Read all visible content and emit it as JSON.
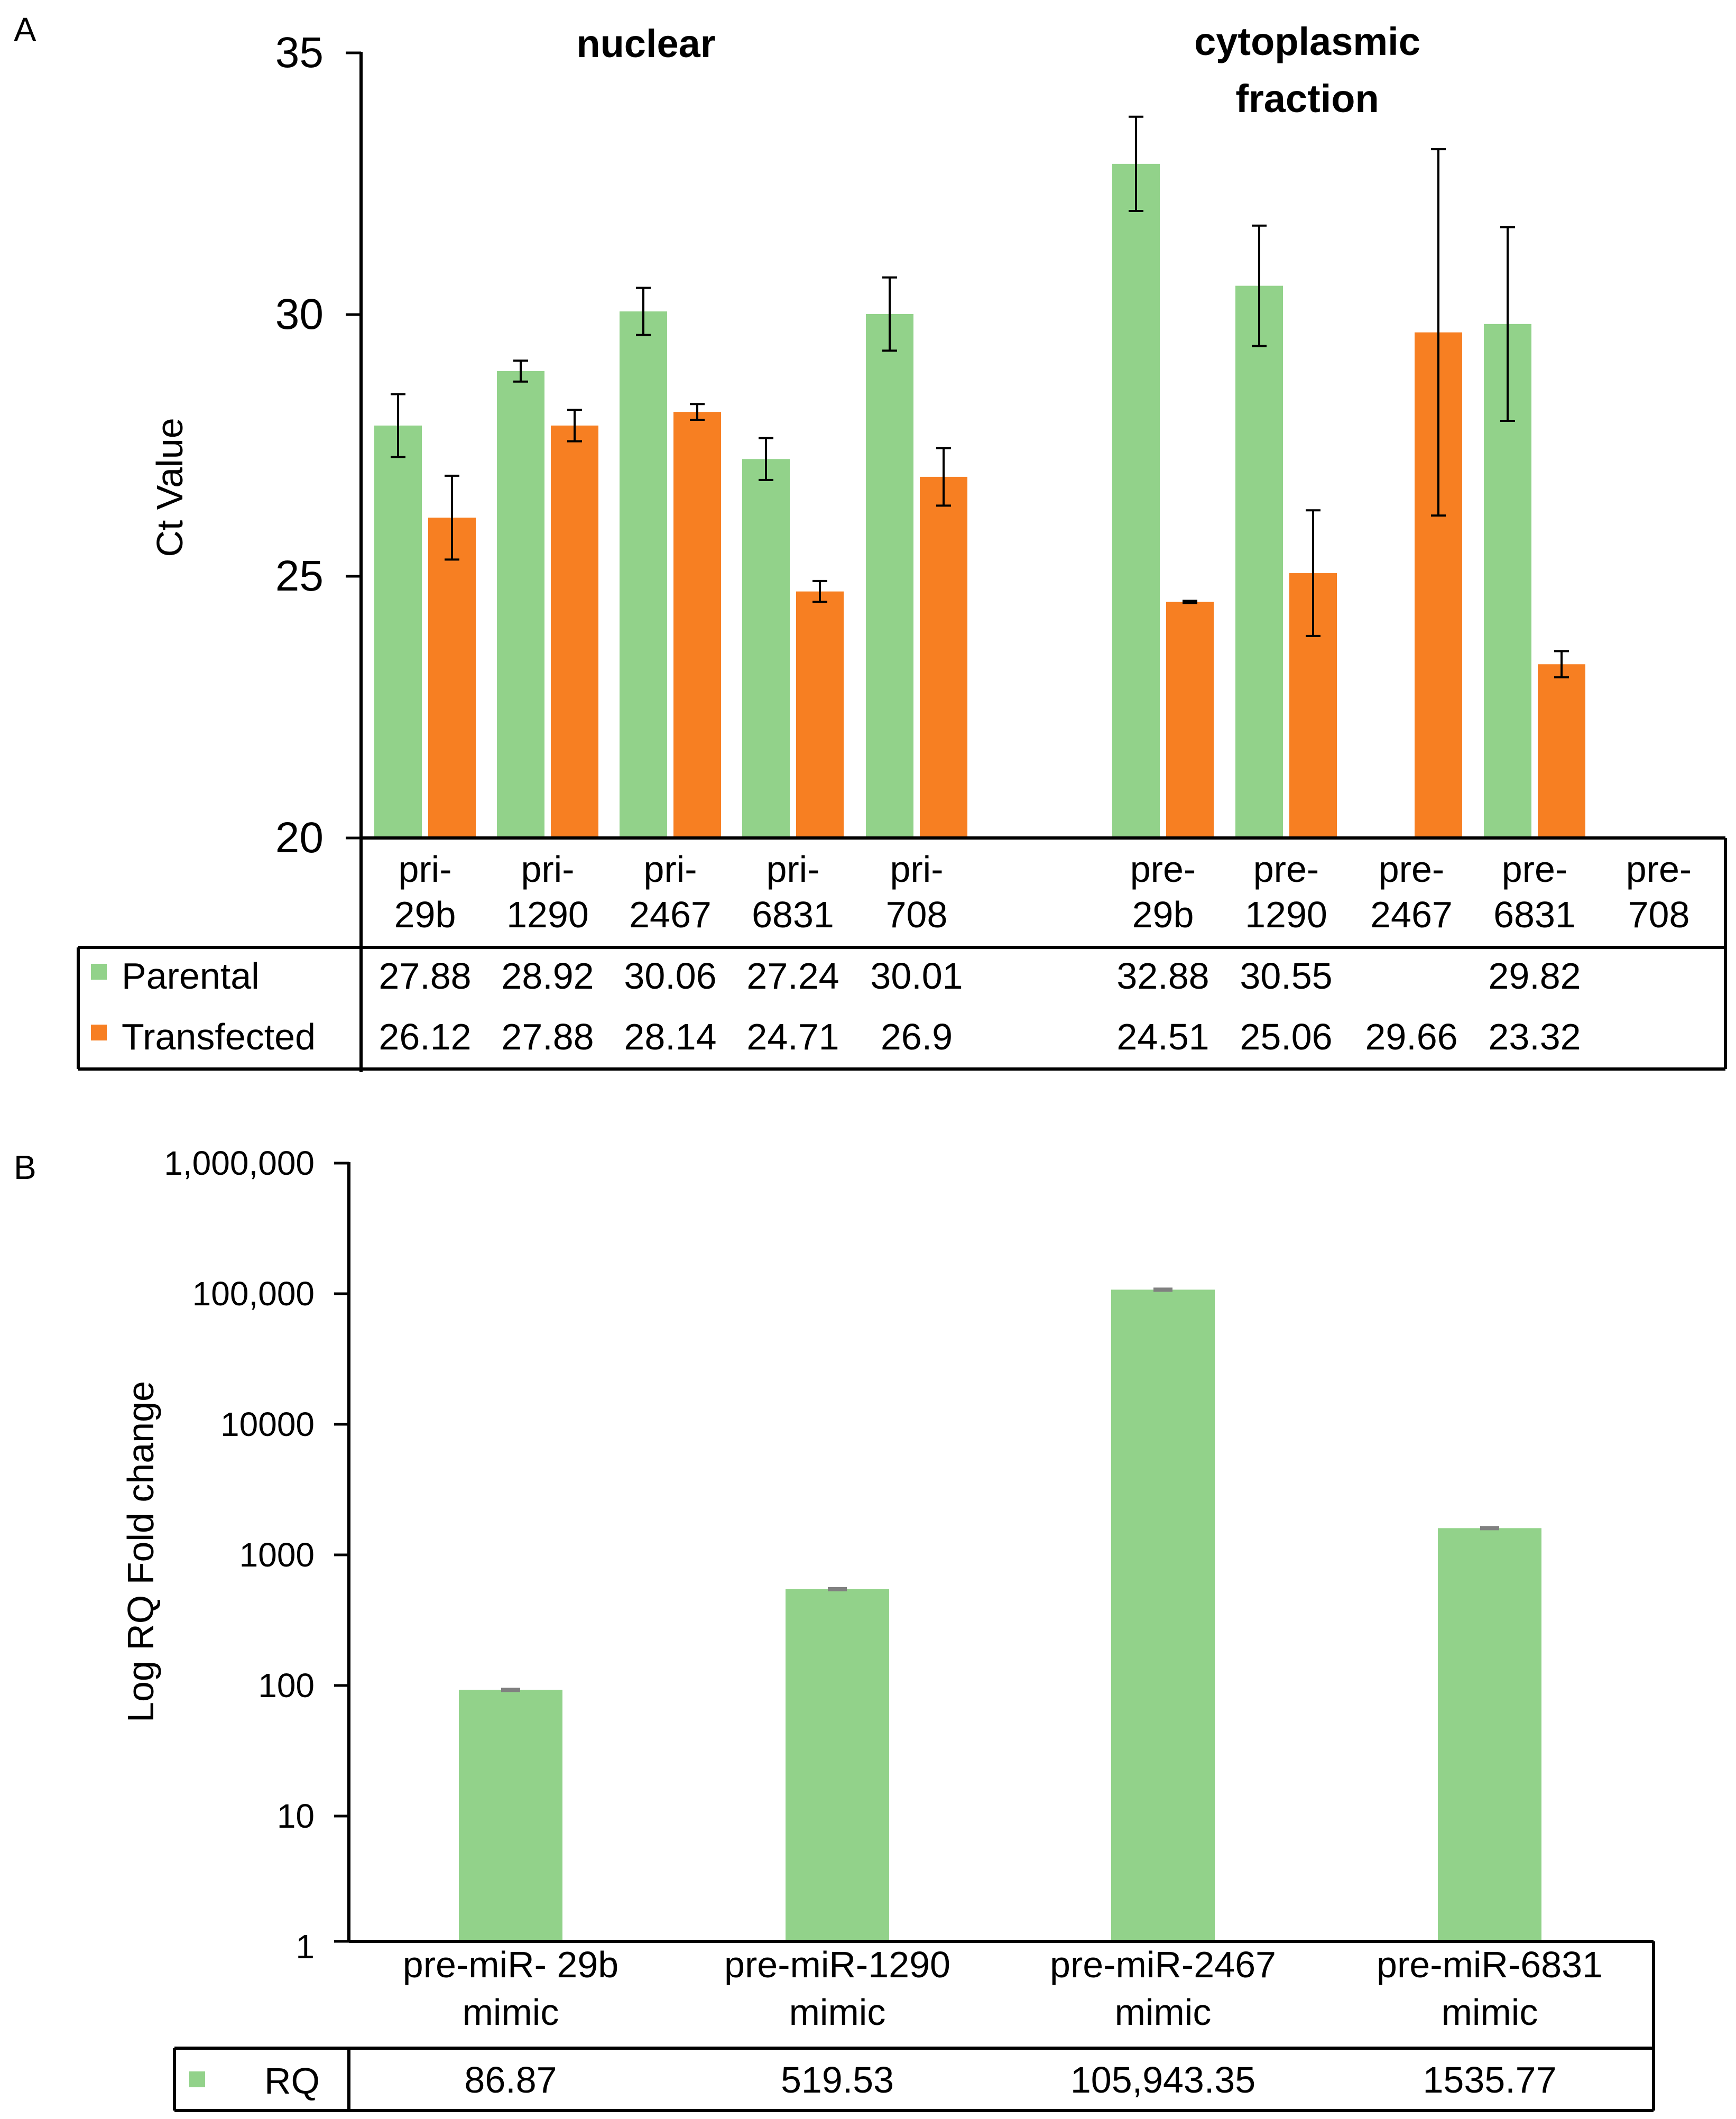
{
  "colors": {
    "parental": "#92d28a",
    "transfected": "#f77f22",
    "rq": "#92d28a"
  },
  "panel_a": {
    "letter": "A",
    "group_labels": [
      "nuclear",
      "cytoplasmic",
      "fraction"
    ],
    "ylabel": "Ct Value",
    "y_ticks": [
      "35",
      "30",
      "25",
      "20"
    ],
    "categories": [
      [
        "pri-",
        "29b"
      ],
      [
        "pri-",
        "1290"
      ],
      [
        "pri-",
        "2467"
      ],
      [
        "pri-",
        "6831"
      ],
      [
        "pri-",
        "708"
      ],
      [
        "pre-",
        "29b"
      ],
      [
        "pre-",
        "1290"
      ],
      [
        "pre-",
        "2467"
      ],
      [
        "pre-",
        "6831"
      ],
      [
        "pre-",
        "708"
      ]
    ],
    "legend": [
      "Parental",
      "Transfected"
    ],
    "table": {
      "parental": [
        "27.88",
        "28.92",
        "30.06",
        "27.24",
        "30.01",
        "32.88",
        "30.55",
        "",
        "29.82",
        ""
      ],
      "transfected": [
        "26.12",
        "27.88",
        "28.14",
        "24.71",
        "26.9",
        "24.51",
        "25.06",
        "29.66",
        "23.32",
        ""
      ]
    }
  },
  "panel_b": {
    "letter": "B",
    "ylabel": "Log RQ Fold change",
    "y_ticks": [
      "1,000,000",
      "100,000",
      "10000",
      "1000",
      "100",
      "10",
      "1"
    ],
    "categories": [
      [
        "pre-miR- 29b",
        "mimic"
      ],
      [
        "pre-miR-1290",
        "mimic"
      ],
      [
        "pre-miR-2467",
        "mimic"
      ],
      [
        "pre-miR-6831",
        "mimic"
      ]
    ],
    "legend": [
      "RQ"
    ],
    "table": {
      "rq": [
        "86.87",
        "519.53",
        "105,943.35",
        "1535.77"
      ]
    }
  },
  "chart_data": [
    {
      "type": "bar",
      "ylabel": "Ct Value",
      "ylim": [
        20,
        35
      ],
      "categories": [
        "pri-29b",
        "pri-1290",
        "pri-2467",
        "pri-6831",
        "pri-708",
        "pre-29b",
        "pre-1290",
        "pre-2467",
        "pre-6831",
        "pre-708"
      ],
      "series": [
        {
          "name": "Parental",
          "values": [
            27.88,
            28.92,
            30.06,
            27.24,
            30.01,
            32.88,
            30.55,
            null,
            29.82,
            null
          ],
          "errors": [
            0.6,
            0.2,
            0.45,
            0.4,
            0.7,
            0.9,
            1.15,
            null,
            1.85,
            null
          ]
        },
        {
          "name": "Transfected",
          "values": [
            26.12,
            27.88,
            28.14,
            24.71,
            26.9,
            24.51,
            25.06,
            29.66,
            23.32,
            null
          ],
          "errors": [
            0.8,
            0.3,
            0.15,
            0.2,
            0.55,
            0.02,
            1.2,
            3.5,
            0.25,
            null
          ]
        }
      ],
      "grid": false
    },
    {
      "type": "bar",
      "ylabel": "Log RQ Fold change",
      "yscale": "log",
      "ylim": [
        1,
        1000000
      ],
      "categories": [
        "pre-miR- 29b mimic",
        "pre-miR-1290 mimic",
        "pre-miR-2467 mimic",
        "pre-miR-6831 mimic"
      ],
      "series": [
        {
          "name": "RQ",
          "values": [
            86.87,
            519.53,
            105943.35,
            1535.77
          ]
        }
      ],
      "grid": false
    }
  ]
}
